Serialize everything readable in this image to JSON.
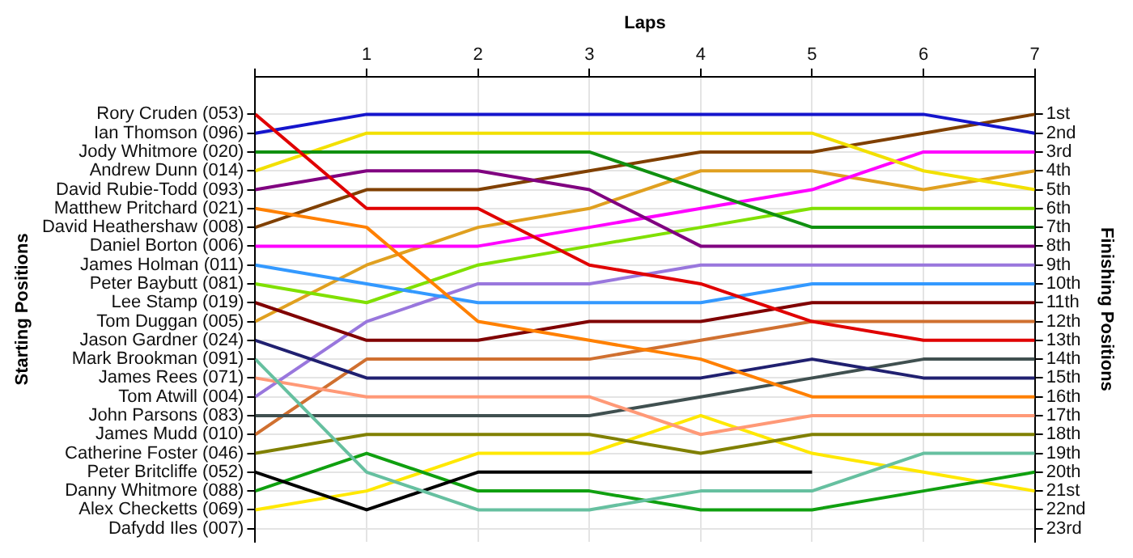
{
  "chart_data": {
    "type": "line",
    "xlabel": "Laps",
    "annotations": [
      "Starting Positions"
    ],
    "y2label": "Finishing Positions",
    "x": [
      0,
      1,
      2,
      3,
      4,
      5,
      6,
      7
    ],
    "xlim": [
      0,
      7
    ],
    "xticks": [
      {
        "value": 0,
        "label": null
      },
      1,
      2,
      3,
      4,
      5,
      6,
      7
    ],
    "y_categories": [
      "Rory Cruden (053)",
      "Ian Thomson (096)",
      "Jody Whitmore (020)",
      "Andrew Dunn (014)",
      "David Rubie-Todd (093)",
      "Matthew Pritchard (021)",
      "David Heathershaw (008)",
      "Daniel Borton (006)",
      "James Holman (011)",
      "Peter Baybutt (081)",
      "Lee Stamp (019)",
      "Tom Duggan (005)",
      "Jason Gardner (024)",
      "Mark Brookman (091)",
      "James Rees (071)",
      "Tom Atwill (004)",
      "John Parsons (083)",
      "James Mudd (010)",
      "Catherine Foster (046)",
      "Peter Britcliffe (052)",
      "Danny Whitmore (088)",
      "Alex Checketts (069)",
      "Dafydd Iles (007)"
    ],
    "y2lim": [
      23.7,
      -1
    ],
    "y2ticks": [
      {
        "value": 1,
        "label": "1st"
      },
      {
        "value": 2,
        "label": "2nd"
      },
      {
        "value": 3,
        "label": "3rd"
      },
      {
        "value": 4,
        "label": "4th"
      },
      {
        "value": 5,
        "label": "5th"
      },
      {
        "value": 6,
        "label": "6th"
      },
      {
        "value": 7,
        "label": "7th"
      },
      {
        "value": 8,
        "label": "8th"
      },
      {
        "value": 9,
        "label": "9th"
      },
      {
        "value": 10,
        "label": "10th"
      },
      {
        "value": 11,
        "label": "11th"
      },
      {
        "value": 12,
        "label": "12th"
      },
      {
        "value": 13,
        "label": "13th"
      },
      {
        "value": 14,
        "label": "14th"
      },
      {
        "value": 15,
        "label": "15th"
      },
      {
        "value": 16,
        "label": "16th"
      },
      {
        "value": 17,
        "label": "17th"
      },
      {
        "value": 18,
        "label": "18th"
      },
      {
        "value": 19,
        "label": "19th"
      },
      {
        "value": 20,
        "label": "20th"
      },
      {
        "value": 21,
        "label": "21st"
      },
      {
        "value": 22,
        "label": "22nd"
      },
      {
        "value": 23,
        "label": "23rd"
      }
    ],
    "grid": true,
    "legend": false,
    "series": [
      {
        "axis": "y2",
        "color": "#e00000",
        "values": [
          1,
          6,
          6,
          9,
          10,
          12,
          13,
          13
        ]
      },
      {
        "axis": "y2",
        "color": "#1515cc",
        "values": [
          2,
          1,
          1,
          1,
          1,
          1,
          1,
          2
        ]
      },
      {
        "axis": "y2",
        "color": "#109010",
        "values": [
          3,
          3,
          3,
          3,
          5,
          7,
          7,
          7
        ]
      },
      {
        "axis": "y2",
        "color": "#f2e000",
        "values": [
          4,
          2,
          2,
          2,
          2,
          2,
          4,
          5
        ]
      },
      {
        "axis": "y2",
        "color": "#800080",
        "values": [
          5,
          4,
          4,
          5,
          8,
          8,
          8,
          8
        ]
      },
      {
        "axis": "y2",
        "color": "#ff8000",
        "values": [
          6,
          7,
          12,
          13,
          14,
          16,
          16,
          16
        ]
      },
      {
        "axis": "y2",
        "color": "#804000",
        "values": [
          7,
          5,
          5,
          4,
          3,
          3,
          2,
          1
        ]
      },
      {
        "axis": "y2",
        "color": "#ff00ff",
        "values": [
          8,
          8,
          8,
          7,
          6,
          5,
          3,
          3
        ]
      },
      {
        "axis": "y2",
        "color": "#3399ff",
        "values": [
          9,
          10,
          11,
          11,
          11,
          10,
          10,
          10
        ]
      },
      {
        "axis": "y2",
        "color": "#80e000",
        "values": [
          10,
          11,
          9,
          8,
          7,
          6,
          6,
          6
        ]
      },
      {
        "axis": "y2",
        "color": "#800000",
        "values": [
          11,
          13,
          13,
          12,
          12,
          11,
          11,
          11
        ]
      },
      {
        "axis": "y2",
        "color": "#e0a020",
        "values": [
          12,
          9,
          7,
          6,
          4,
          4,
          5,
          4
        ]
      },
      {
        "axis": "y2",
        "color": "#202070",
        "values": [
          13,
          15,
          15,
          15,
          15,
          14,
          15,
          15
        ]
      },
      {
        "axis": "y2",
        "color": "#66c0a0",
        "values": [
          14,
          20,
          22,
          22,
          21,
          21,
          19,
          19
        ]
      },
      {
        "axis": "y2",
        "color": "#ff9977",
        "values": [
          15,
          16,
          16,
          16,
          18,
          17,
          17,
          17
        ]
      },
      {
        "axis": "y2",
        "color": "#9977dd",
        "values": [
          16,
          12,
          10,
          10,
          9,
          9,
          9,
          9
        ]
      },
      {
        "axis": "y2",
        "color": "#405050",
        "values": [
          17,
          17,
          17,
          17,
          16,
          15,
          14,
          14
        ]
      },
      {
        "axis": "y2",
        "color": "#d07030",
        "values": [
          18,
          14,
          14,
          14,
          13,
          12,
          12,
          12
        ]
      },
      {
        "axis": "y2",
        "color": "#808000",
        "values": [
          19,
          18,
          18,
          18,
          19,
          18,
          18,
          18
        ]
      },
      {
        "axis": "y2",
        "color": "#000000",
        "values": [
          20,
          22,
          20,
          20,
          20,
          20,
          null,
          null
        ]
      },
      {
        "axis": "y2",
        "color": "#10a010",
        "values": [
          21,
          19,
          21,
          21,
          22,
          22,
          21,
          20
        ]
      },
      {
        "axis": "y2",
        "color": "#ffe800",
        "values": [
          22,
          21,
          19,
          19,
          17,
          19,
          20,
          21
        ]
      }
    ]
  }
}
